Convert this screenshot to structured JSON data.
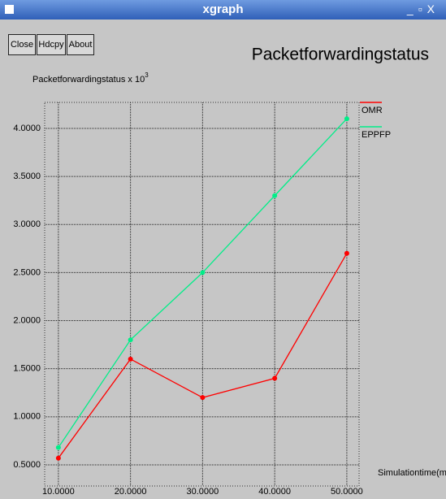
{
  "window": {
    "title": "xgraph",
    "buttons": [
      "Close",
      "Hdcpy",
      "About"
    ]
  },
  "chart_data": {
    "type": "line",
    "title": "Packetforwardingstatus",
    "y_label": "Packetforwardingstatus x 10",
    "y_label_exponent": "3",
    "x_label": "Simulationtime(msec)",
    "x": [
      10,
      20,
      30,
      40,
      50
    ],
    "series": [
      {
        "name": "OMR",
        "color": "#ff0000",
        "values": [
          0.57,
          1.6,
          1.2,
          1.4,
          2.7
        ]
      },
      {
        "name": "EPPFP",
        "color": "#00ee88",
        "values": [
          0.68,
          1.8,
          2.5,
          3.3,
          4.1
        ]
      }
    ],
    "xlim": [
      8.1,
      51.7
    ],
    "ylim": [
      0.28,
      4.27
    ],
    "xticks": [
      {
        "value": 10,
        "label": "10.0000"
      },
      {
        "value": 20,
        "label": "20.0000"
      },
      {
        "value": 30,
        "label": "30.0000"
      },
      {
        "value": 40,
        "label": "40.0000"
      },
      {
        "value": 50,
        "label": "50.0000"
      }
    ],
    "yticks": [
      {
        "value": 0.5,
        "label": "0.5000"
      },
      {
        "value": 1,
        "label": "1.0000"
      },
      {
        "value": 1.5,
        "label": "1.5000"
      },
      {
        "value": 2,
        "label": "2.0000"
      },
      {
        "value": 2.5,
        "label": "2.5000"
      },
      {
        "value": 3,
        "label": "3.0000"
      },
      {
        "value": 3.5,
        "label": "3.5000"
      },
      {
        "value": 4,
        "label": "4.0000"
      }
    ],
    "grid": true
  }
}
